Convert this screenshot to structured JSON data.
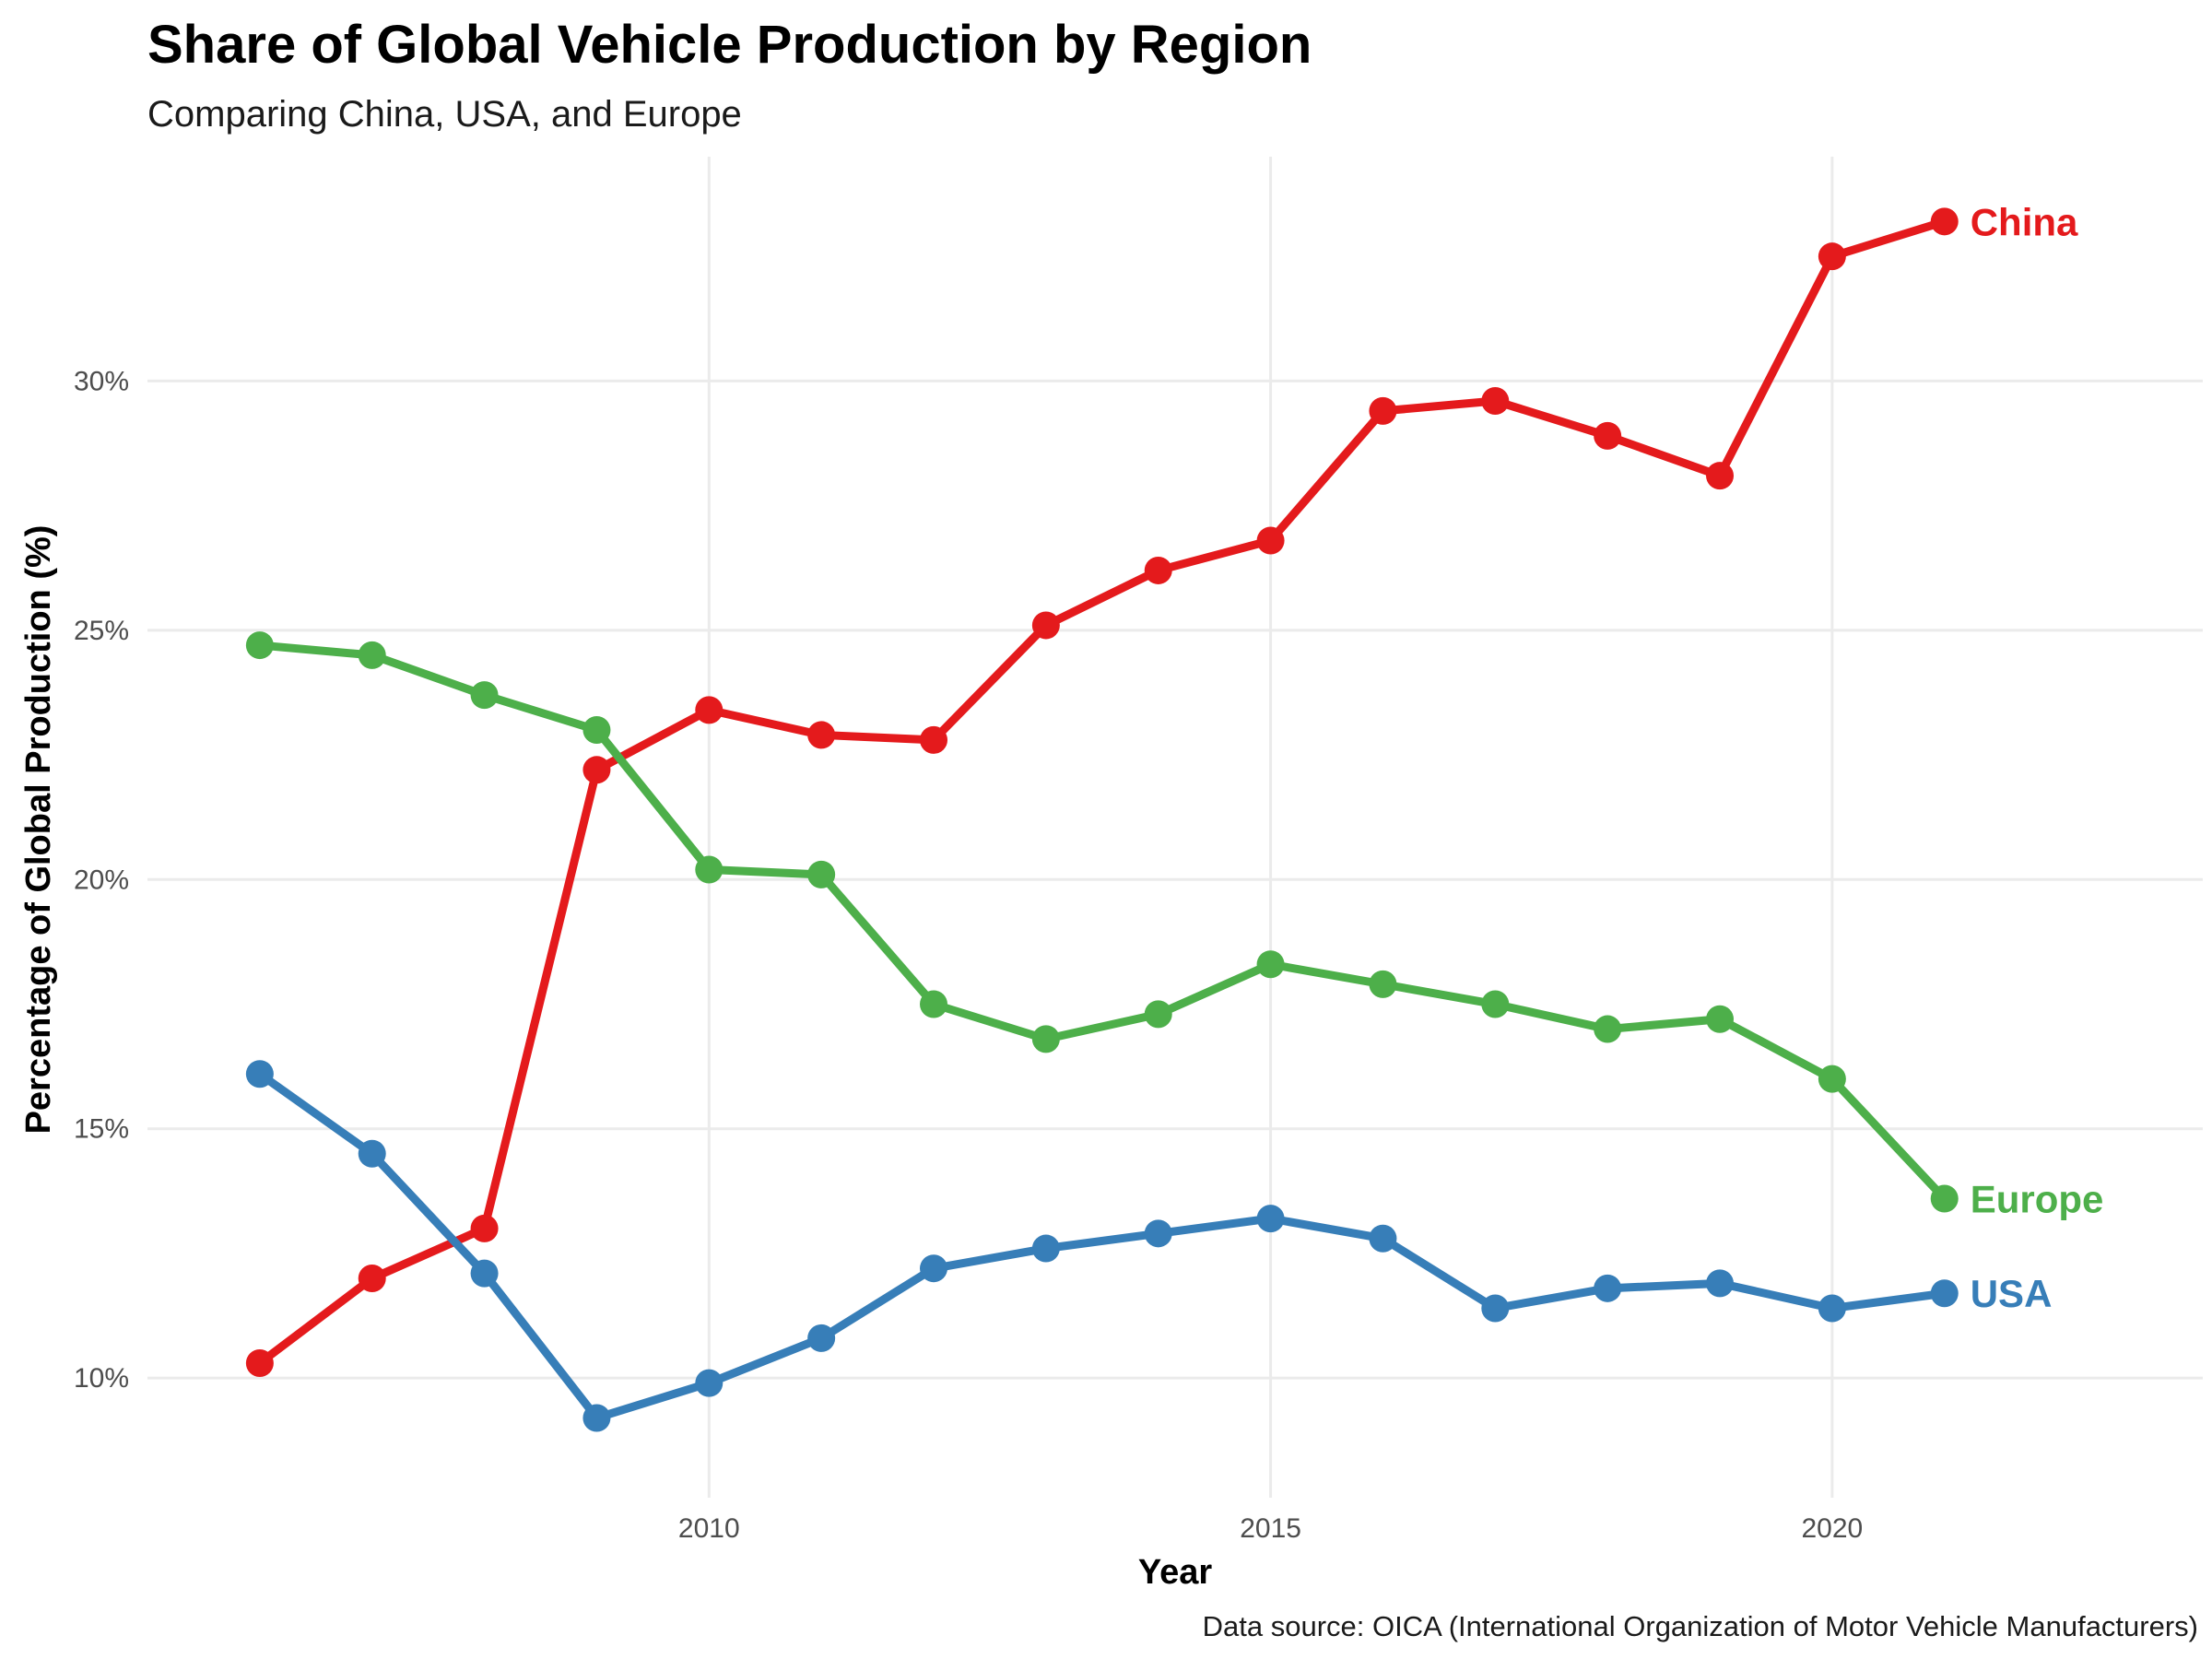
{
  "chart_data": {
    "type": "line",
    "title": "Share of Global Vehicle Production by Region",
    "subtitle": "Comparing China, USA, and Europe",
    "xlabel": "Year",
    "ylabel": "Percentage of Global Production (%)",
    "caption": "Data source: OICA (International Organization of Motor Vehicle Manufacturers)",
    "x": [
      2006,
      2007,
      2008,
      2009,
      2010,
      2011,
      2012,
      2013,
      2014,
      2015,
      2016,
      2017,
      2018,
      2019,
      2020,
      2021
    ],
    "xlim": [
      2005.0,
      2023.3
    ],
    "ylim": [
      7.6,
      34.5
    ],
    "x_ticks": [
      2010,
      2015,
      2020
    ],
    "x_tick_labels": [
      "2010",
      "2015",
      "2020"
    ],
    "y_ticks": [
      10,
      15,
      20,
      25,
      30
    ],
    "y_tick_labels": [
      "10%",
      "15%",
      "20%",
      "25%",
      "30%"
    ],
    "grid": true,
    "legend": "direct labels at line ends",
    "series": [
      {
        "name": "China",
        "color": "#e41a1c",
        "values": [
          10.3,
          12.0,
          13.0,
          22.2,
          23.4,
          22.9,
          22.8,
          25.1,
          26.2,
          26.8,
          29.4,
          29.6,
          28.9,
          28.1,
          32.5,
          33.2
        ]
      },
      {
        "name": "Europe",
        "color": "#4daf4a",
        "values": [
          24.7,
          24.5,
          23.7,
          23.0,
          20.2,
          20.1,
          17.5,
          16.8,
          17.3,
          18.3,
          17.9,
          17.5,
          17.0,
          17.2,
          16.0,
          13.6
        ]
      },
      {
        "name": "USA",
        "color": "#377eb8",
        "values": [
          16.1,
          14.5,
          12.1,
          9.2,
          9.9,
          10.8,
          12.2,
          12.6,
          12.9,
          13.2,
          12.8,
          11.4,
          11.8,
          11.9,
          11.4,
          11.7
        ]
      }
    ]
  }
}
